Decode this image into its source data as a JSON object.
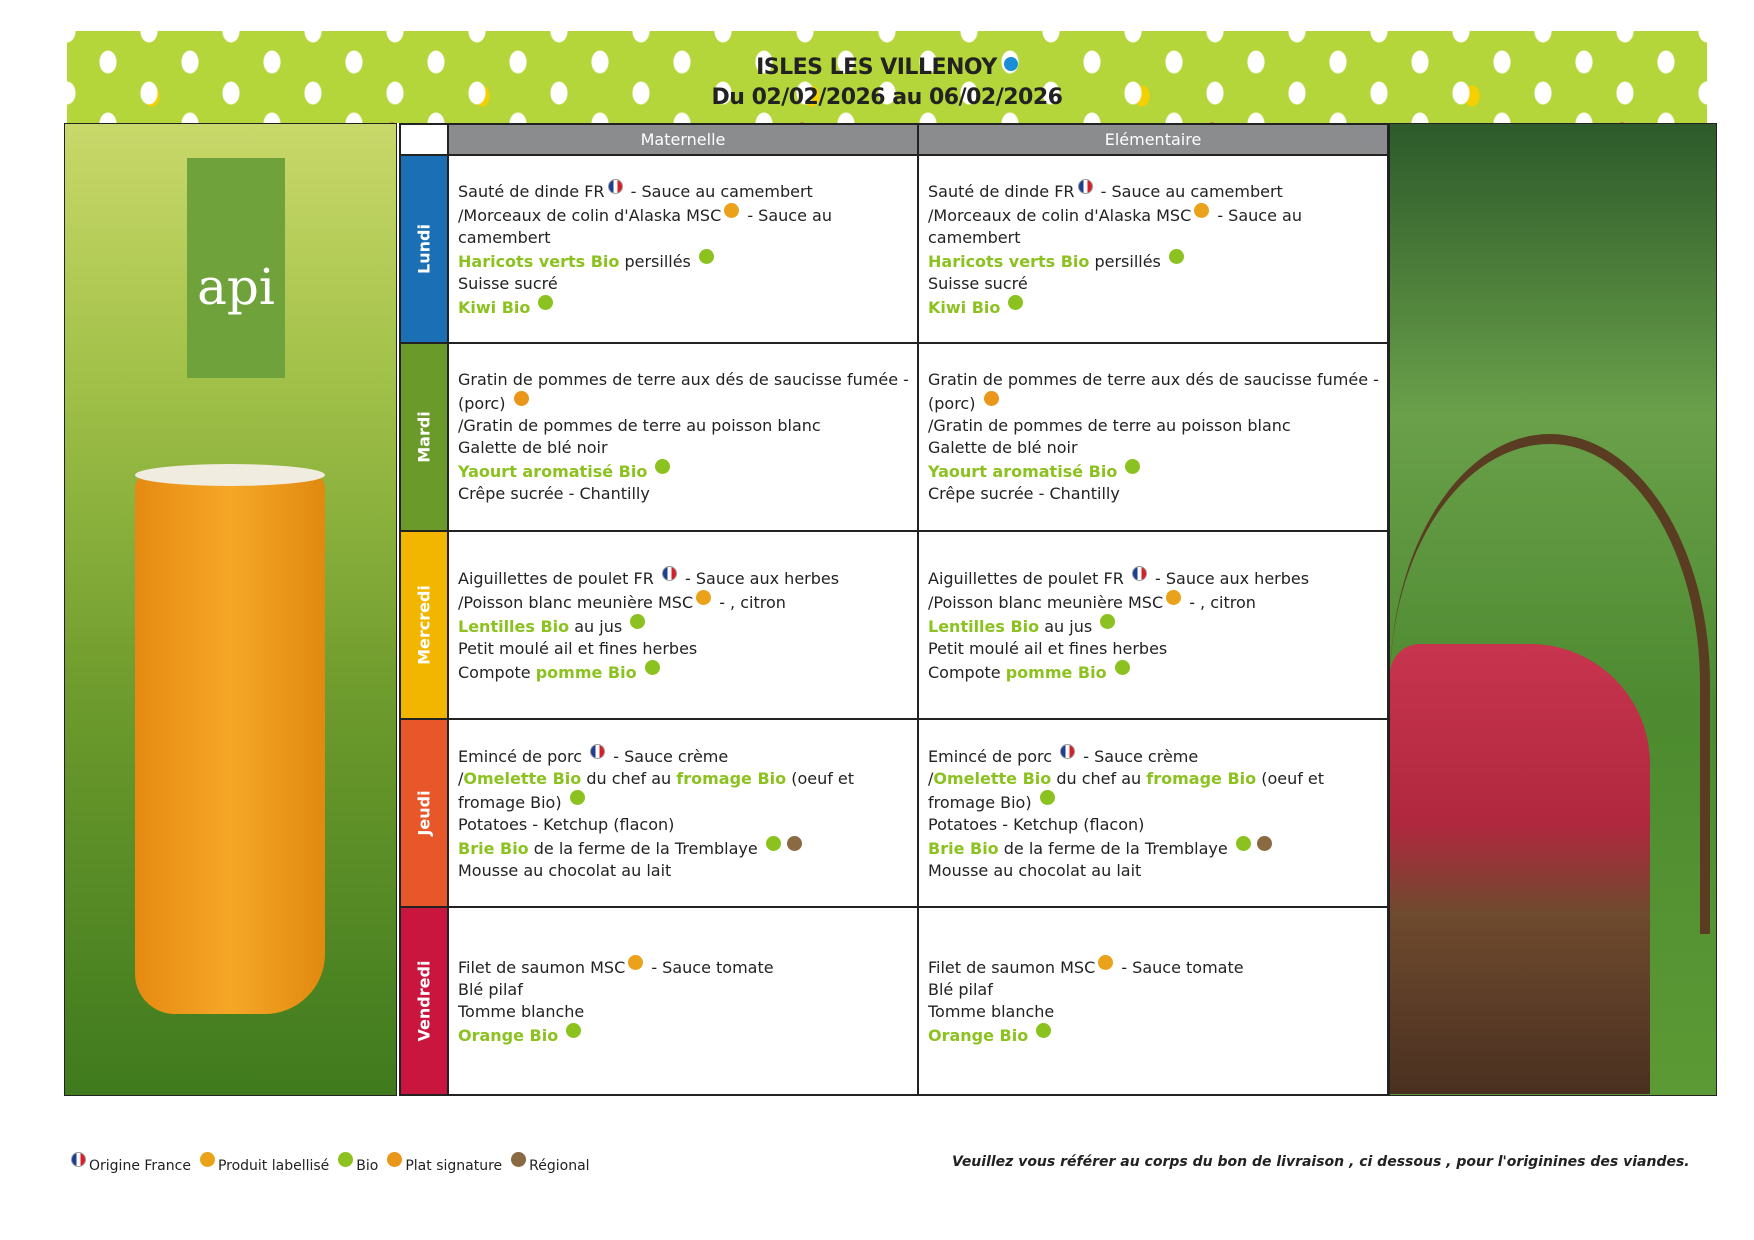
{
  "header": {
    "title": "ISLES LES VILLENOY",
    "dates": "Du 02/02/2026 au 06/02/2026"
  },
  "logo": "api",
  "columns": [
    "Maternelle",
    "Elémentaire"
  ],
  "colors": {
    "bio": "#8cc21f",
    "lundi": "#1a6fb5",
    "mardi": "#6a9a2a",
    "mercredi": "#f2b500",
    "jeudi": "#e8572a",
    "vendredi": "#c8163f"
  },
  "days": [
    {
      "name": "Lundi",
      "lines": [
        [
          {
            "t": "Sauté de dinde FR"
          },
          {
            "icon": "fr"
          },
          {
            "t": " - Sauce au camembert"
          }
        ],
        [
          {
            "t": "/Morceaux de colin d'Alaska MSC"
          },
          {
            "icon": "label"
          },
          {
            "t": " - Sauce au camembert"
          }
        ],
        [
          {
            "t": "Haricots verts Bio",
            "bio": true
          },
          {
            "t": " persillés "
          },
          {
            "icon": "bio"
          }
        ],
        [
          {
            "t": "Suisse sucré"
          }
        ],
        [
          {
            "t": "Kiwi Bio",
            "bio": true
          },
          {
            "t": " "
          },
          {
            "icon": "bio"
          }
        ]
      ]
    },
    {
      "name": "Mardi",
      "lines": [
        [
          {
            "t": "Gratin de pommes de terre aux dés de saucisse fumée - (porc) "
          },
          {
            "icon": "sig"
          }
        ],
        [
          {
            "t": "/Gratin de pommes de terre au poisson blanc"
          }
        ],
        [
          {
            "t": "Galette de blé noir"
          }
        ],
        [
          {
            "t": "Yaourt aromatisé Bio",
            "bio": true
          },
          {
            "t": " "
          },
          {
            "icon": "bio"
          }
        ],
        [
          {
            "t": "Crêpe sucrée - Chantilly"
          }
        ]
      ]
    },
    {
      "name": "Mercredi",
      "lines": [
        [
          {
            "t": "Aiguillettes de poulet FR "
          },
          {
            "icon": "fr"
          },
          {
            "t": " - Sauce aux herbes"
          }
        ],
        [
          {
            "t": "/Poisson blanc meunière MSC"
          },
          {
            "icon": "label"
          },
          {
            "t": " - , citron"
          }
        ],
        [
          {
            "t": "Lentilles Bio",
            "bio": true
          },
          {
            "t": " au jus "
          },
          {
            "icon": "bio"
          }
        ],
        [
          {
            "t": "Petit moulé ail et fines herbes"
          }
        ],
        [
          {
            "t": "Compote "
          },
          {
            "t": "pomme Bio",
            "bio": true
          },
          {
            "t": " "
          },
          {
            "icon": "bio"
          }
        ]
      ]
    },
    {
      "name": "Jeudi",
      "lines": [
        [
          {
            "t": "Emincé de porc "
          },
          {
            "icon": "fr"
          },
          {
            "t": " - Sauce crème"
          }
        ],
        [
          {
            "t": "/"
          },
          {
            "t": "Omelette Bio",
            "bio": true
          },
          {
            "t": " du chef au "
          },
          {
            "t": "fromage Bio",
            "bio": true
          },
          {
            "t": " (oeuf et fromage Bio) "
          },
          {
            "icon": "bio"
          }
        ],
        [
          {
            "t": "Potatoes - Ketchup (flacon)"
          }
        ],
        [
          {
            "t": "Brie Bio",
            "bio": true
          },
          {
            "t": " de la ferme de la Tremblaye "
          },
          {
            "icon": "bio"
          },
          {
            "icon": "reg"
          }
        ],
        [
          {
            "t": "Mousse au chocolat au lait"
          }
        ]
      ]
    },
    {
      "name": "Vendredi",
      "lines": [
        [
          {
            "t": "Filet de saumon MSC"
          },
          {
            "icon": "label"
          },
          {
            "t": " - Sauce tomate"
          }
        ],
        [
          {
            "t": "Blé pilaf"
          }
        ],
        [
          {
            "t": "Tomme blanche"
          }
        ],
        [
          {
            "t": "Orange Bio",
            "bio": true
          },
          {
            "t": " "
          },
          {
            "icon": "bio"
          }
        ]
      ]
    }
  ],
  "legend": [
    {
      "icon": "fr",
      "label": "Origine France"
    },
    {
      "icon": "label",
      "label": "Produit labellisé"
    },
    {
      "icon": "bio",
      "label": "Bio"
    },
    {
      "icon": "sig",
      "label": "Plat signature"
    },
    {
      "icon": "reg",
      "label": "Régional"
    }
  ],
  "note": "Veuillez vous référer au corps du bon de livraison , ci dessous , pour l'originines des viandes."
}
